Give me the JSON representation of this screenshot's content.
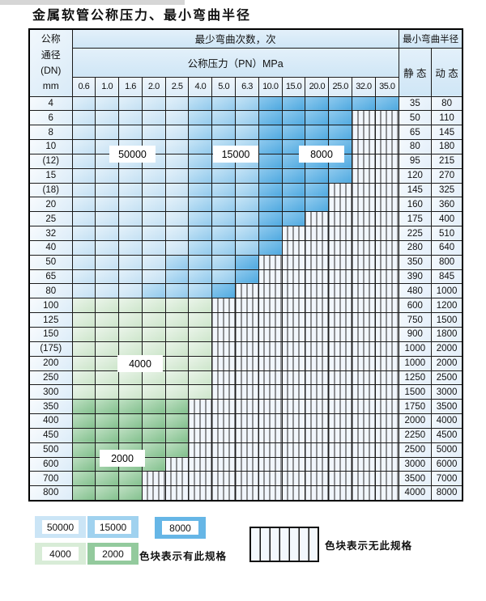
{
  "title": "金属软管公称压力、最小弯曲半径",
  "table": {
    "header": {
      "dn_label": "公称\n通径\n(DN)\nmm",
      "bend_cycles_label": "最少弯曲次数，次",
      "pressure_label": "公称压力（PN）MPa",
      "pressure_columns": [
        "0.6",
        "1.0",
        "1.6",
        "2.0",
        "2.5",
        "4.0",
        "5.0",
        "6.3",
        "10.0",
        "15.0",
        "20.0",
        "25.0",
        "32.0",
        "35.0"
      ],
      "radius_label": "最小弯曲半径",
      "static_label": "静 态",
      "dynamic_label": "动 态"
    },
    "rows": [
      {
        "dn": "4",
        "cols": 14,
        "zone": "b",
        "med": 5,
        "dark": 8,
        "static": "35",
        "dynamic": "80"
      },
      {
        "dn": "6",
        "cols": 12,
        "zone": "b",
        "med": 5,
        "dark": 8,
        "static": "50",
        "dynamic": "110"
      },
      {
        "dn": "8",
        "cols": 12,
        "zone": "b",
        "med": 5,
        "dark": 8,
        "static": "65",
        "dynamic": "145"
      },
      {
        "dn": "10",
        "cols": 12,
        "zone": "b",
        "med": 5,
        "dark": 8,
        "static": "80",
        "dynamic": "180"
      },
      {
        "dn": "(12)",
        "cols": 12,
        "zone": "b",
        "med": 5,
        "dark": 8,
        "static": "95",
        "dynamic": "215"
      },
      {
        "dn": "15",
        "cols": 12,
        "zone": "b",
        "med": 5,
        "dark": 8,
        "static": "120",
        "dynamic": "270"
      },
      {
        "dn": "(18)",
        "cols": 11,
        "zone": "b",
        "med": 5,
        "dark": 8,
        "static": "145",
        "dynamic": "325"
      },
      {
        "dn": "20",
        "cols": 11,
        "zone": "b",
        "med": 5,
        "dark": 8,
        "static": "160",
        "dynamic": "360"
      },
      {
        "dn": "25",
        "cols": 10,
        "zone": "b",
        "med": 5,
        "dark": 8,
        "static": "175",
        "dynamic": "400"
      },
      {
        "dn": "32",
        "cols": 9,
        "zone": "b",
        "med": 5,
        "dark": 8,
        "static": "225",
        "dynamic": "510"
      },
      {
        "dn": "40",
        "cols": 9,
        "zone": "b",
        "med": 5,
        "dark": 8,
        "static": "280",
        "dynamic": "640"
      },
      {
        "dn": "50",
        "cols": 8,
        "zone": "b",
        "med": 4,
        "dark": 7,
        "static": "350",
        "dynamic": "800"
      },
      {
        "dn": "65",
        "cols": 8,
        "zone": "b",
        "med": 4,
        "dark": 7,
        "static": "390",
        "dynamic": "845"
      },
      {
        "dn": "80",
        "cols": 7,
        "zone": "b",
        "med": 3,
        "dark": 6,
        "static": "480",
        "dynamic": "1000"
      },
      {
        "dn": "100",
        "cols": 6,
        "zone": "g1",
        "static": "600",
        "dynamic": "1200"
      },
      {
        "dn": "125",
        "cols": 6,
        "zone": "g1",
        "static": "750",
        "dynamic": "1500"
      },
      {
        "dn": "150",
        "cols": 6,
        "zone": "g1",
        "static": "900",
        "dynamic": "1800"
      },
      {
        "dn": "(175)",
        "cols": 6,
        "zone": "g1",
        "static": "1000",
        "dynamic": "2000"
      },
      {
        "dn": "200",
        "cols": 6,
        "zone": "g1",
        "static": "1000",
        "dynamic": "2000"
      },
      {
        "dn": "250",
        "cols": 6,
        "zone": "g1",
        "static": "1250",
        "dynamic": "2500"
      },
      {
        "dn": "300",
        "cols": 6,
        "zone": "g1",
        "static": "1500",
        "dynamic": "3000"
      },
      {
        "dn": "350",
        "cols": 5,
        "zone": "g2",
        "static": "1750",
        "dynamic": "3500"
      },
      {
        "dn": "400",
        "cols": 5,
        "zone": "g2",
        "static": "2000",
        "dynamic": "4000"
      },
      {
        "dn": "450",
        "cols": 5,
        "zone": "g2",
        "static": "2250",
        "dynamic": "4500"
      },
      {
        "dn": "500",
        "cols": 5,
        "zone": "g2",
        "static": "2500",
        "dynamic": "5000"
      },
      {
        "dn": "600",
        "cols": 4,
        "zone": "g2",
        "static": "3000",
        "dynamic": "6000"
      },
      {
        "dn": "700",
        "cols": 3,
        "zone": "g2",
        "static": "3500",
        "dynamic": "7000"
      },
      {
        "dn": "800",
        "cols": 3,
        "zone": "g2",
        "static": "4000",
        "dynamic": "8000"
      }
    ],
    "zone_labels": [
      {
        "text": "50000"
      },
      {
        "text": "15000"
      },
      {
        "text": "8000"
      },
      {
        "text": "4000"
      },
      {
        "text": "2000"
      }
    ]
  },
  "legend": {
    "items": [
      {
        "label": "50000",
        "color": "#cbe5f6"
      },
      {
        "label": "15000",
        "color": "#a0d2ef"
      },
      {
        "label": "8000",
        "color": "#66b6e6"
      },
      {
        "label": "4000",
        "color": "#d8ecd7"
      },
      {
        "label": "2000",
        "color": "#93ca9d"
      }
    ],
    "has_spec_text": "色块表示有此规格",
    "no_spec_text": "色块表示无此规格"
  },
  "colors": {
    "zone_50000": "#cbe5f6",
    "zone_15000": "#a0d2ef",
    "zone_8000": "#66b6e6",
    "zone_4000": "#d8ecd7",
    "zone_2000": "#93ca9d",
    "grid_line": "#1b1b1b"
  }
}
